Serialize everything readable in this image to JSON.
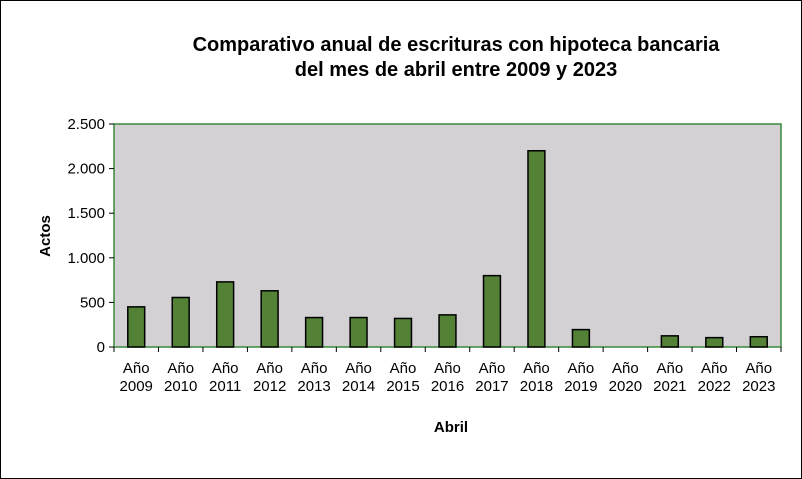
{
  "chart_data": {
    "type": "bar",
    "title_lines": [
      "Comparativo anual de escrituras con hipoteca bancaria",
      "del mes de abril entre 2009 y 2023"
    ],
    "xlabel": "Abril",
    "ylabel": "Actos",
    "categories": [
      [
        "Año",
        "2009"
      ],
      [
        "Año",
        "2010"
      ],
      [
        "Año",
        "2011"
      ],
      [
        "Año",
        "2012"
      ],
      [
        "Año",
        "2013"
      ],
      [
        "Año",
        "2014"
      ],
      [
        "Año",
        "2015"
      ],
      [
        "Año",
        "2016"
      ],
      [
        "Año",
        "2017"
      ],
      [
        "Año",
        "2018"
      ],
      [
        "Año",
        "2019"
      ],
      [
        "Año",
        "2020"
      ],
      [
        "Año",
        "2021"
      ],
      [
        "Año",
        "2022"
      ],
      [
        "Año",
        "2023"
      ]
    ],
    "values": [
      450,
      555,
      730,
      630,
      330,
      330,
      320,
      360,
      800,
      2200,
      195,
      0,
      125,
      105,
      115
    ],
    "ylim": [
      0,
      2500
    ],
    "yticks": [
      0,
      500,
      1000,
      1500,
      2000,
      2500
    ],
    "ytick_labels": [
      "0",
      "500",
      "1.000",
      "1.500",
      "2.000",
      "2.500"
    ],
    "grid": false,
    "legend": "none",
    "colors": {
      "bar_fill": "#538135",
      "bar_stroke": "#000000",
      "plot_background": "#d3d1d3",
      "plot_border": "#3a8a3a"
    }
  }
}
